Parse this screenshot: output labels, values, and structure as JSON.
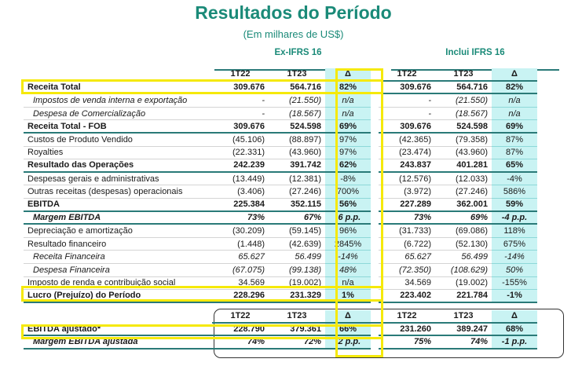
{
  "title": "Resultados do Período",
  "subtitle": "(Em milhares de US$)",
  "groups": [
    "Ex-IFRS 16",
    "Inclui IFRS 16"
  ],
  "columns": [
    "1T22",
    "1T23",
    "Δ",
    "1T22",
    "1T23",
    "Δ"
  ],
  "rows": [
    {
      "label": "Receita Total",
      "style": "b",
      "values": [
        "309.676",
        "564.716",
        "82%",
        "309.676",
        "564.716",
        "82%"
      ]
    },
    {
      "label": "Impostos de venda interna e exportação",
      "style": "i",
      "values": [
        "-",
        "(21.550)",
        "n/a",
        "-",
        "(21.550)",
        "n/a"
      ]
    },
    {
      "label": "Despesa de Comercialização",
      "style": "i",
      "values": [
        "-",
        "(18.567)",
        "n/a",
        "-",
        "(18.567)",
        "n/a"
      ]
    },
    {
      "label": "Receita Total - FOB",
      "style": "b",
      "values": [
        "309.676",
        "524.598",
        "69%",
        "309.676",
        "524.598",
        "69%"
      ]
    },
    {
      "label": "Custos de Produto Vendido",
      "style": "",
      "values": [
        "(45.106)",
        "(88.897)",
        "97%",
        "(42.365)",
        "(79.358)",
        "87%"
      ]
    },
    {
      "label": "Royalties",
      "style": "",
      "values": [
        "(22.331)",
        "(43.960)",
        "97%",
        "(23.474)",
        "(43.960)",
        "87%"
      ]
    },
    {
      "label": "Resultado das Operações",
      "style": "b",
      "values": [
        "242.239",
        "391.742",
        "62%",
        "243.837",
        "401.281",
        "65%"
      ]
    },
    {
      "label": "Despesas gerais e administrativas",
      "style": "",
      "values": [
        "(13.449)",
        "(12.381)",
        "-8%",
        "(12.576)",
        "(12.033)",
        "-4%"
      ]
    },
    {
      "label": "Outras receitas (despesas) operacionais",
      "style": "",
      "values": [
        "(3.406)",
        "(27.246)",
        "700%",
        "(3.972)",
        "(27.246)",
        "586%"
      ]
    },
    {
      "label": "EBITDA",
      "style": "b",
      "values": [
        "225.384",
        "352.115",
        "56%",
        "227.289",
        "362.001",
        "59%"
      ]
    },
    {
      "label": "Margem EBITDA",
      "style": "bi",
      "values": [
        "73%",
        "67%",
        "-6 p.p.",
        "73%",
        "69%",
        "-4 p.p."
      ]
    },
    {
      "label": "Depreciação e amortização",
      "style": "",
      "values": [
        "(30.209)",
        "(59.145)",
        "96%",
        "(31.733)",
        "(69.086)",
        "118%"
      ]
    },
    {
      "label": "Resultado financeiro",
      "style": "",
      "values": [
        "(1.448)",
        "(42.639)",
        "2845%",
        "(6.722)",
        "(52.130)",
        "675%"
      ]
    },
    {
      "label": "Receita Financeira",
      "style": "i",
      "values": [
        "65.627",
        "56.499",
        "-14%",
        "65.627",
        "56.499",
        "-14%"
      ]
    },
    {
      "label": "Despesa Financeira",
      "style": "i",
      "values": [
        "(67.075)",
        "(99.138)",
        "48%",
        "(72.350)",
        "(108.629)",
        "50%"
      ]
    },
    {
      "label": "Imposto de renda e contribuição social",
      "style": "",
      "values": [
        "34.569",
        "(19.002)",
        "n/a",
        "34.569",
        "(19.002)",
        "-155%"
      ]
    },
    {
      "label": "Lucro (Prejuízo) do Período",
      "style": "b",
      "values": [
        "228.296",
        "231.329",
        "1%",
        "223.402",
        "221.784",
        "-1%"
      ]
    }
  ],
  "adjusted": {
    "columns": [
      "1T22",
      "1T23",
      "Δ",
      "1T22",
      "1T23",
      "Δ"
    ],
    "rows": [
      {
        "label": "EBITDA ajustado*",
        "style": "b",
        "values": [
          "228.790",
          "379.361",
          "66%",
          "231.260",
          "389.247",
          "68%"
        ]
      },
      {
        "label": "Margem EBITDA ajustada",
        "style": "bi",
        "values": [
          "74%",
          "72%",
          "-2 p.p.",
          "75%",
          "74%",
          "-1 p.p."
        ]
      }
    ]
  },
  "colors": {
    "accent": "#1a8a78",
    "highlight": "#f5e90a",
    "delta_bg": "#c9f3f3"
  }
}
